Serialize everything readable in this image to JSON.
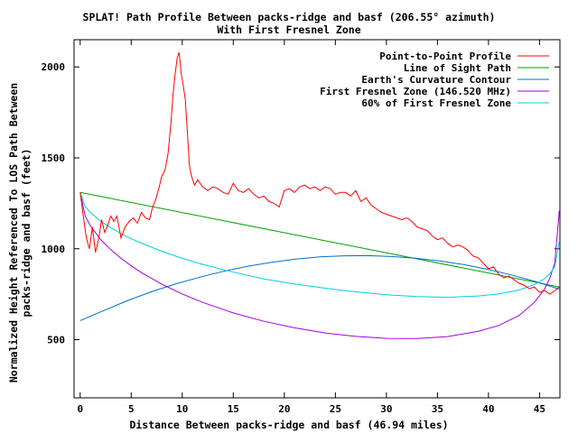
{
  "chart_data": {
    "type": "line",
    "title": "SPLAT! Path Profile Between packs-ridge and basf (206.55° azimuth)",
    "subtitle": "With First Fresnel Zone",
    "xlabel": "Distance Between packs-ridge and basf (46.94 miles)",
    "ylabel_line1": "Normalized Height Referenced To LOS Path Between",
    "ylabel_line2": "packs-ridge and basf (feet)",
    "xlim": [
      -0.6,
      47.0
    ],
    "ylim": [
      180,
      2150
    ],
    "xticks": [
      0,
      5,
      10,
      15,
      20,
      25,
      30,
      35,
      40,
      45
    ],
    "yticks": [
      500,
      1000,
      1500,
      2000
    ],
    "grid": false,
    "legend_position": "top-right",
    "series": [
      {
        "name": "Point-to-Point Profile",
        "color": "#ff0000",
        "x": [
          0,
          0.3,
          0.6,
          0.9,
          1.2,
          1.5,
          1.8,
          2.1,
          2.4,
          2.7,
          3.0,
          3.3,
          3.6,
          4.0,
          4.4,
          4.8,
          5.2,
          5.6,
          6.0,
          6.4,
          6.8,
          7.1,
          7.4,
          7.7,
          8.0,
          8.3,
          8.6,
          8.9,
          9.1,
          9.3,
          9.5,
          9.7,
          9.9,
          10.1,
          10.3,
          10.5,
          10.7,
          10.9,
          11.2,
          11.5,
          12.0,
          12.5,
          13.0,
          13.5,
          14.0,
          14.5,
          15.0,
          15.5,
          16.0,
          16.5,
          17.0,
          17.5,
          18.0,
          18.5,
          19.0,
          19.5,
          20.0,
          20.5,
          21.0,
          21.5,
          22.0,
          22.5,
          23.0,
          23.5,
          24.0,
          24.5,
          25.0,
          25.5,
          26.0,
          26.5,
          27.0,
          27.5,
          28.0,
          28.5,
          29.0,
          29.5,
          30.0,
          30.5,
          31.0,
          31.5,
          32.0,
          32.5,
          33.0,
          33.5,
          34.0,
          34.5,
          35.0,
          35.5,
          36.0,
          36.5,
          37.0,
          37.5,
          38.0,
          38.5,
          39.0,
          39.5,
          40.0,
          40.5,
          41.0,
          41.5,
          42.0,
          42.5,
          43.0,
          43.5,
          44.0,
          44.5,
          45.0,
          45.5,
          46.0,
          46.5,
          46.94
        ],
        "y": [
          1310,
          1180,
          1060,
          1000,
          1120,
          980,
          1050,
          1160,
          1090,
          1130,
          1180,
          1150,
          1180,
          1060,
          1120,
          1150,
          1170,
          1140,
          1200,
          1170,
          1160,
          1230,
          1270,
          1330,
          1400,
          1430,
          1520,
          1700,
          1850,
          1960,
          2050,
          2080,
          1960,
          1900,
          1820,
          1640,
          1460,
          1400,
          1350,
          1380,
          1340,
          1320,
          1340,
          1330,
          1310,
          1300,
          1360,
          1320,
          1310,
          1330,
          1300,
          1280,
          1290,
          1260,
          1250,
          1230,
          1320,
          1330,
          1310,
          1340,
          1350,
          1330,
          1340,
          1320,
          1340,
          1330,
          1300,
          1310,
          1310,
          1290,
          1320,
          1260,
          1280,
          1240,
          1220,
          1200,
          1190,
          1180,
          1170,
          1160,
          1170,
          1150,
          1120,
          1110,
          1100,
          1070,
          1050,
          1060,
          1030,
          1010,
          1020,
          1010,
          990,
          960,
          950,
          920,
          890,
          900,
          860,
          840,
          850,
          830,
          810,
          800,
          780,
          790,
          760,
          770,
          750,
          770,
          790
        ]
      },
      {
        "name": "Line of Sight Path",
        "color": "#00a000",
        "x": [
          0,
          46.94
        ],
        "y": [
          1310,
          790
        ]
      },
      {
        "name": "Earth's Curvature Contour",
        "color": "#0070d0",
        "x": [
          0,
          2.35,
          4.69,
          7.04,
          9.39,
          11.74,
          14.08,
          16.43,
          18.78,
          21.12,
          23.47,
          25.82,
          28.16,
          30.51,
          32.86,
          35.21,
          37.55,
          39.9,
          42.25,
          44.59,
          46.94
        ],
        "y": [
          605,
          661,
          716,
          765,
          807,
          844,
          876,
          904,
          926,
          943,
          955,
          961,
          962,
          957,
          948,
          933,
          913,
          887,
          856,
          820,
          778
        ]
      },
      {
        "name": "First Fresnel Zone (146.520 MHz)",
        "color": "#a000e0",
        "x": [
          0,
          0.5,
          1.0,
          2.0,
          3.0,
          4.0,
          5.0,
          6.0,
          8.0,
          10.0,
          12.0,
          15.0,
          18.0,
          21.0,
          24.0,
          27.0,
          30.0,
          33.0,
          36.0,
          39.0,
          41.0,
          43.0,
          44.5,
          45.5,
          46.0,
          46.5,
          46.94
        ],
        "y": [
          1310,
          1179,
          1126,
          1051,
          995,
          947,
          906,
          869,
          805,
          751,
          705,
          647,
          601,
          565,
          537,
          518,
          507,
          506,
          517,
          546,
          578,
          633,
          705,
          779,
          836,
          922,
          1210
        ]
      },
      {
        "name": "60% of First Fresnel Zone",
        "color": "#00d0e0",
        "x": [
          0,
          0.5,
          1.0,
          2.0,
          3.0,
          4.0,
          5.0,
          6.0,
          8.0,
          10.0,
          12.0,
          15.0,
          18.0,
          21.0,
          24.0,
          27.0,
          30.0,
          33.0,
          36.0,
          39.0,
          41.0,
          43.0,
          44.5,
          45.5,
          46.0,
          46.5,
          46.94
        ],
        "y": [
          1310,
          1232,
          1199,
          1152,
          1116,
          1083,
          1055,
          1031,
          986,
          947,
          914,
          871,
          834,
          806,
          783,
          763,
          747,
          737,
          733,
          740,
          752,
          773,
          803,
          835,
          861,
          901,
          1040
        ]
      }
    ]
  }
}
